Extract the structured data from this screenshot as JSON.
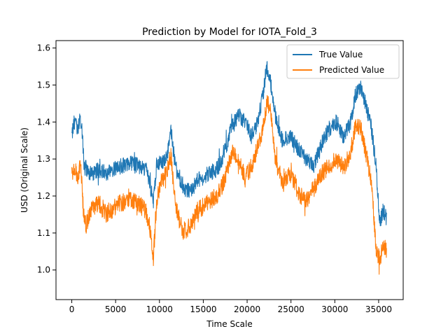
{
  "chart_data": {
    "type": "line",
    "title": "Prediction by Model for IOTA_Fold_3",
    "xlabel": "Time Scale",
    "ylabel": "USD (Original Scale)",
    "xlim": [
      -1800,
      37800
    ],
    "ylim": [
      0.92,
      1.62
    ],
    "x_ticks": [
      0,
      5000,
      10000,
      15000,
      20000,
      25000,
      30000,
      35000
    ],
    "y_ticks": [
      1.0,
      1.1,
      1.2,
      1.3,
      1.4,
      1.5,
      1.6
    ],
    "y_tick_labels": [
      "1.0",
      "1.1",
      "1.2",
      "1.3",
      "1.4",
      "1.5",
      "1.6"
    ],
    "grid": false,
    "legend_position": "upper-right",
    "series": [
      {
        "name": "True Value",
        "color": "#1f77b4",
        "noise": 0.022,
        "points": [
          [
            0,
            1.37
          ],
          [
            300,
            1.4
          ],
          [
            700,
            1.38
          ],
          [
            1000,
            1.41
          ],
          [
            1200,
            1.37
          ],
          [
            1400,
            1.28
          ],
          [
            2200,
            1.26
          ],
          [
            3000,
            1.27
          ],
          [
            4000,
            1.26
          ],
          [
            5500,
            1.28
          ],
          [
            7000,
            1.29
          ],
          [
            8500,
            1.27
          ],
          [
            8800,
            1.25
          ],
          [
            9300,
            1.18
          ],
          [
            9700,
            1.28
          ],
          [
            10200,
            1.29
          ],
          [
            10800,
            1.3
          ],
          [
            11300,
            1.38
          ],
          [
            11800,
            1.28
          ],
          [
            12300,
            1.25
          ],
          [
            12800,
            1.22
          ],
          [
            13500,
            1.21
          ],
          [
            14300,
            1.24
          ],
          [
            15500,
            1.26
          ],
          [
            16500,
            1.27
          ],
          [
            17200,
            1.3
          ],
          [
            17700,
            1.34
          ],
          [
            18300,
            1.39
          ],
          [
            19000,
            1.42
          ],
          [
            19800,
            1.4
          ],
          [
            20500,
            1.36
          ],
          [
            21200,
            1.4
          ],
          [
            21800,
            1.47
          ],
          [
            22200,
            1.55
          ],
          [
            22600,
            1.52
          ],
          [
            23200,
            1.42
          ],
          [
            24000,
            1.35
          ],
          [
            25000,
            1.36
          ],
          [
            26000,
            1.32
          ],
          [
            26800,
            1.3
          ],
          [
            27600,
            1.28
          ],
          [
            28500,
            1.34
          ],
          [
            29300,
            1.38
          ],
          [
            30200,
            1.4
          ],
          [
            31000,
            1.36
          ],
          [
            31800,
            1.4
          ],
          [
            32400,
            1.48
          ],
          [
            33000,
            1.49
          ],
          [
            33600,
            1.44
          ],
          [
            34200,
            1.38
          ],
          [
            34700,
            1.28
          ],
          [
            35100,
            1.13
          ],
          [
            35500,
            1.16
          ],
          [
            35900,
            1.14
          ]
        ]
      },
      {
        "name": "Predicted Value",
        "color": "#ff7f0e",
        "noise": 0.024,
        "points": [
          [
            0,
            1.26
          ],
          [
            300,
            1.28
          ],
          [
            700,
            1.24
          ],
          [
            1000,
            1.29
          ],
          [
            1300,
            1.17
          ],
          [
            1600,
            1.12
          ],
          [
            2200,
            1.16
          ],
          [
            3000,
            1.18
          ],
          [
            4000,
            1.15
          ],
          [
            5500,
            1.18
          ],
          [
            7000,
            1.19
          ],
          [
            8500,
            1.16
          ],
          [
            9000,
            1.1
          ],
          [
            9300,
            1.03
          ],
          [
            9700,
            1.19
          ],
          [
            10200,
            1.24
          ],
          [
            10800,
            1.26
          ],
          [
            11300,
            1.31
          ],
          [
            11800,
            1.18
          ],
          [
            12300,
            1.13
          ],
          [
            12800,
            1.1
          ],
          [
            13500,
            1.12
          ],
          [
            14300,
            1.16
          ],
          [
            15500,
            1.18
          ],
          [
            16500,
            1.2
          ],
          [
            17200,
            1.23
          ],
          [
            17700,
            1.27
          ],
          [
            18300,
            1.32
          ],
          [
            19000,
            1.3
          ],
          [
            19800,
            1.25
          ],
          [
            20500,
            1.28
          ],
          [
            21200,
            1.33
          ],
          [
            21800,
            1.38
          ],
          [
            22300,
            1.46
          ],
          [
            22700,
            1.42
          ],
          [
            23200,
            1.3
          ],
          [
            24000,
            1.24
          ],
          [
            25000,
            1.26
          ],
          [
            26000,
            1.2
          ],
          [
            26800,
            1.19
          ],
          [
            27600,
            1.22
          ],
          [
            28500,
            1.26
          ],
          [
            29300,
            1.28
          ],
          [
            30200,
            1.3
          ],
          [
            31000,
            1.27
          ],
          [
            31800,
            1.32
          ],
          [
            32400,
            1.39
          ],
          [
            33000,
            1.38
          ],
          [
            33600,
            1.31
          ],
          [
            34200,
            1.23
          ],
          [
            34700,
            1.05
          ],
          [
            35100,
            1.03
          ],
          [
            35500,
            1.06
          ],
          [
            35900,
            1.05
          ]
        ]
      }
    ]
  }
}
